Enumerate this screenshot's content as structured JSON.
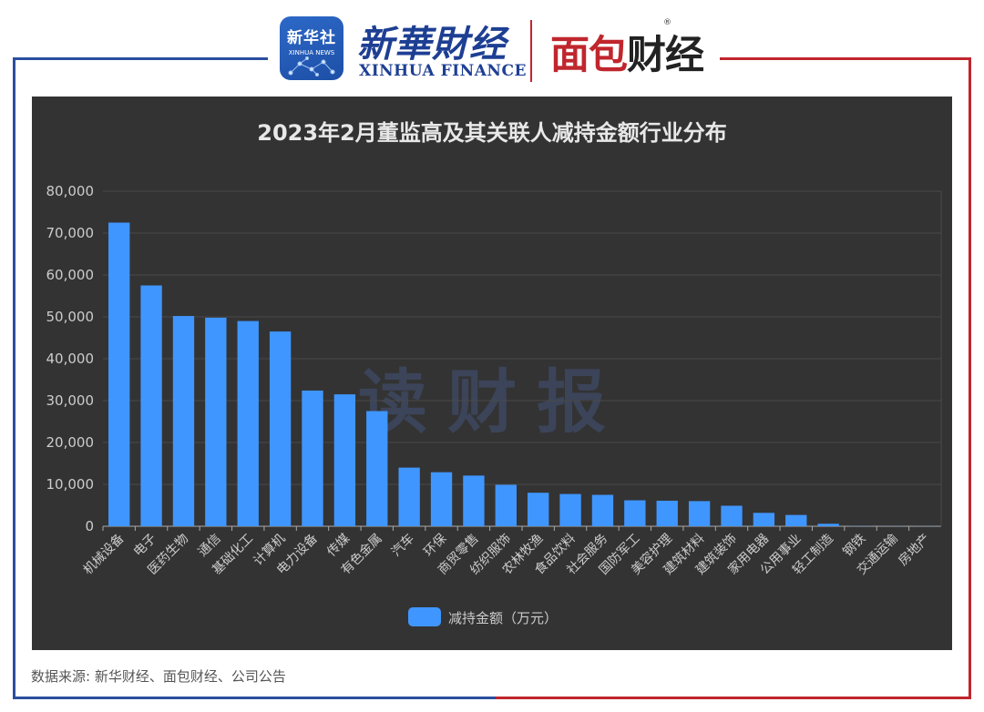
{
  "header": {
    "xinhua_badge": "新华社",
    "xinhua_badge_sub": "XINHUA NEWS",
    "xinhua_finance_cn": "新華財经",
    "xinhua_finance_en": "XINHUA FINANCE",
    "mianbao_red": "面包",
    "mianbao_dark": "财经",
    "registered_mark": "®"
  },
  "colors": {
    "panel_bg": "#333333",
    "bar": "#4096ff",
    "title": "#e8e8e8",
    "axis_text": "#cccccc",
    "grid": "#4a4a4a",
    "watermark": "#3e4a66"
  },
  "chart_data": {
    "type": "bar",
    "title": "2023年2月董监高及其关联人减持金额行业分布",
    "watermark": "读财报",
    "ylim": [
      0,
      80000
    ],
    "yticks": [
      "0",
      "10,000",
      "20,000",
      "30,000",
      "40,000",
      "50,000",
      "60,000",
      "70,000",
      "80,000"
    ],
    "grid": true,
    "legend_position": "bottom-center",
    "categories": [
      "机械设备",
      "电子",
      "医药生物",
      "通信",
      "基础化工",
      "计算机",
      "电力设备",
      "传媒",
      "有色金属",
      "汽车",
      "环保",
      "商贸零售",
      "纺织服饰",
      "农林牧渔",
      "食品饮料",
      "社会服务",
      "国防军工",
      "美容护理",
      "建筑材料",
      "建筑装饰",
      "家用电器",
      "公用事业",
      "轻工制造",
      "钢铁",
      "交通运输",
      "房地产"
    ],
    "series": [
      {
        "name": "减持金额（万元）",
        "values": [
          72500,
          57500,
          50200,
          49800,
          49000,
          46500,
          32400,
          31500,
          27500,
          14000,
          12900,
          12100,
          9900,
          8000,
          7700,
          7500,
          6200,
          6100,
          6000,
          4900,
          3200,
          2700,
          600,
          50,
          30,
          20
        ]
      }
    ]
  },
  "footer": {
    "source": "数据来源: 新华财经、面包财经、公司公告"
  }
}
